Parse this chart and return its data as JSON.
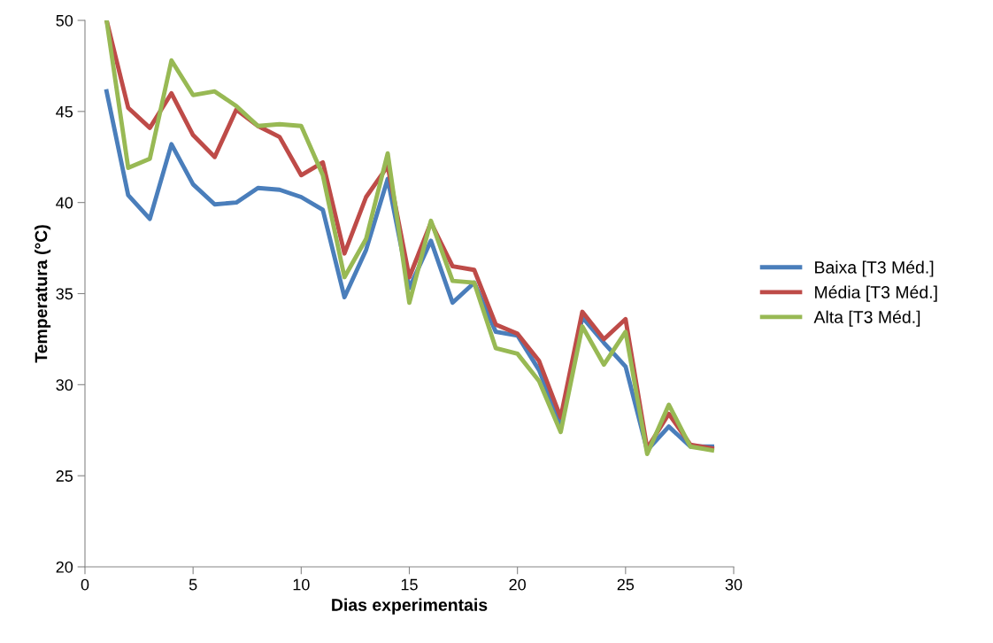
{
  "chart_data": {
    "type": "line",
    "xlabel": "Dias experimentais",
    "ylabel": "Temperatura (°C)",
    "x": [
      1,
      2,
      3,
      4,
      5,
      6,
      7,
      8,
      9,
      10,
      11,
      12,
      13,
      14,
      15,
      16,
      17,
      18,
      19,
      20,
      21,
      22,
      23,
      24,
      25,
      26,
      27,
      28,
      29
    ],
    "xlim": [
      0,
      30
    ],
    "xticks": [
      0,
      5,
      10,
      15,
      20,
      25,
      30
    ],
    "ylim": [
      20,
      50
    ],
    "yticks": [
      20,
      25,
      30,
      35,
      40,
      45,
      50
    ],
    "grid": false,
    "legend": "right",
    "marker": "none",
    "line_style": "solid",
    "series": [
      {
        "name": "Baixa [T3 Méd.]",
        "color": "#4a7ebb",
        "values": [
          46.1,
          40.4,
          39.1,
          43.2,
          41.0,
          39.9,
          40.0,
          40.8,
          40.7,
          40.3,
          39.6,
          34.8,
          37.4,
          41.3,
          35.3,
          37.9,
          34.5,
          35.6,
          32.9,
          32.7,
          30.8,
          27.8,
          33.7,
          32.3,
          31.0,
          26.4,
          27.7,
          26.6,
          26.6
        ]
      },
      {
        "name": "Média [T3 Méd.]",
        "color": "#be4b48",
        "values": [
          50,
          45.2,
          44.1,
          46.0,
          43.7,
          42.5,
          45.1,
          44.2,
          43.6,
          41.5,
          42.2,
          37.2,
          40.3,
          42.0,
          35.9,
          38.9,
          36.5,
          36.3,
          33.3,
          32.8,
          31.3,
          28.2,
          34.0,
          32.5,
          33.6,
          26.5,
          28.4,
          26.7,
          26.5
        ]
      },
      {
        "name": "Alta [T3 Méd.]",
        "color": "#98b954",
        "values": [
          50,
          41.9,
          42.4,
          47.8,
          45.9,
          46.1,
          45.3,
          44.2,
          44.3,
          44.2,
          41.5,
          35.9,
          38.0,
          42.7,
          34.5,
          39.0,
          35.7,
          35.6,
          32.0,
          31.7,
          30.2,
          27.4,
          33.2,
          31.1,
          32.9,
          26.2,
          28.9,
          26.6,
          26.4
        ]
      }
    ]
  }
}
